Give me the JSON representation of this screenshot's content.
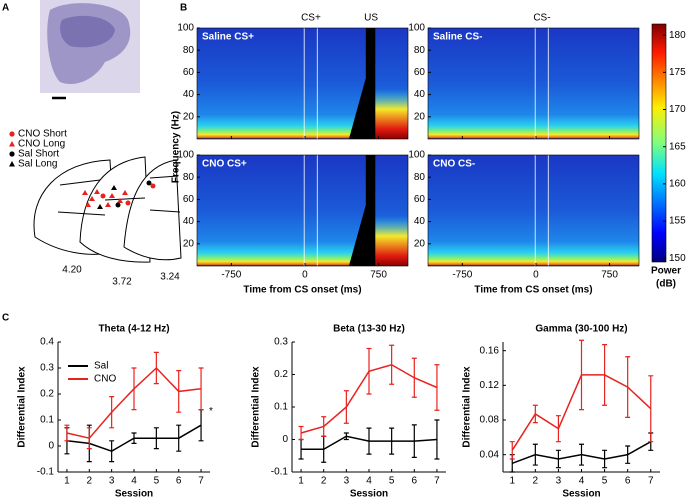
{
  "panel_labels": [
    "A",
    "B",
    "C"
  ],
  "histology": {
    "legend": [
      {
        "label": "CNO Short",
        "color": "#e8221e",
        "marker": "circle"
      },
      {
        "label": "CNO Long",
        "color": "#e8221e",
        "marker": "triangle"
      },
      {
        "label": "Sal Short",
        "color": "#000000",
        "marker": "circle"
      },
      {
        "label": "Sal Long",
        "color": "#000000",
        "marker": "triangle"
      }
    ],
    "section_labels": [
      "4.20",
      "3.72",
      "3.24"
    ]
  },
  "chart_data": [
    {
      "type": "spectrogram",
      "event_labels": {
        "cs_plus": "CS+",
        "us": "US",
        "cs_minus": "CS-"
      },
      "panels": [
        "Saline CS+",
        "Saline CS-",
        "CNO CS+",
        "CNO CS-"
      ],
      "ylabel": "Frequency (Hz)",
      "xlabel": "Time from CS onset (ms)",
      "ylim": [
        0,
        100
      ],
      "yticks": [
        20,
        40,
        60,
        80,
        100
      ],
      "xlim": [
        -1100,
        1050
      ],
      "xticks": [
        -750,
        0,
        750
      ],
      "colorbar": {
        "label_lines": [
          "Power",
          "(dB)"
        ],
        "lim": [
          149.5,
          181.5
        ],
        "ticks": [
          150,
          155,
          160,
          165,
          170,
          175,
          180
        ]
      }
    },
    {
      "type": "line",
      "title": "Theta (4-12 Hz)",
      "xlabel": "Session",
      "ylabel": "Differential Index",
      "x": [
        1,
        2,
        3,
        4,
        5,
        6,
        7
      ],
      "xlim": [
        0.6,
        7.4
      ],
      "xticks": [
        1,
        2,
        3,
        4,
        5,
        6,
        7
      ],
      "ylim": [
        -0.1,
        0.4
      ],
      "yticks": [
        -0.1,
        0,
        0.1,
        0.2,
        0.3,
        0.4
      ],
      "legend": true,
      "annotation": "*",
      "series": [
        {
          "name": "Sal",
          "color": "#000000",
          "values": [
            0.02,
            0.01,
            -0.02,
            0.03,
            0.03,
            0.03,
            0.08
          ],
          "errors": [
            0.05,
            0.07,
            0.04,
            0.02,
            0.04,
            0.05,
            0.06
          ]
        },
        {
          "name": "CNO",
          "color": "#e8221e",
          "values": [
            0.05,
            0.03,
            0.13,
            0.22,
            0.3,
            0.21,
            0.22
          ],
          "errors": [
            0.03,
            0.04,
            0.06,
            0.08,
            0.06,
            0.08,
            0.08
          ]
        }
      ]
    },
    {
      "type": "line",
      "title": "Beta (13-30 Hz)",
      "xlabel": "Session",
      "ylabel": "Differential Index",
      "x": [
        1,
        2,
        3,
        4,
        5,
        6,
        7
      ],
      "xlim": [
        0.6,
        7.4
      ],
      "xticks": [
        1,
        2,
        3,
        4,
        5,
        6,
        7
      ],
      "ylim": [
        -0.1,
        0.3
      ],
      "yticks": [
        -0.1,
        0,
        0.1,
        0.2,
        0.3
      ],
      "legend": false,
      "series": [
        {
          "color": "#000000",
          "values": [
            -0.03,
            -0.03,
            0.01,
            -0.005,
            -0.005,
            -0.005,
            0
          ],
          "errors": [
            0.03,
            0.04,
            0.01,
            0.04,
            0.04,
            0.05,
            0.06
          ]
        },
        {
          "color": "#e8221e",
          "values": [
            0.02,
            0.04,
            0.1,
            0.21,
            0.23,
            0.19,
            0.16
          ],
          "errors": [
            0.02,
            0.03,
            0.05,
            0.07,
            0.06,
            0.06,
            0.07
          ]
        }
      ]
    },
    {
      "type": "line",
      "title": "Gamma (30-100 Hz)",
      "xlabel": "Session",
      "ylabel": "Differential Index",
      "x": [
        1,
        2,
        3,
        4,
        5,
        6,
        7
      ],
      "xlim": [
        0.6,
        7.4
      ],
      "xticks": [
        1,
        2,
        3,
        4,
        5,
        6,
        7
      ],
      "ylim": [
        0.02,
        0.17
      ],
      "yticks": [
        0.04,
        0.08,
        0.12,
        0.16
      ],
      "legend": false,
      "series": [
        {
          "color": "#000000",
          "values": [
            0.03,
            0.04,
            0.035,
            0.04,
            0.035,
            0.04,
            0.055
          ],
          "errors": [
            0.01,
            0.012,
            0.01,
            0.012,
            0.01,
            0.01,
            0.01
          ]
        },
        {
          "color": "#e8221e",
          "values": [
            0.045,
            0.087,
            0.07,
            0.132,
            0.132,
            0.118,
            0.093
          ],
          "errors": [
            0.01,
            0.01,
            0.015,
            0.04,
            0.035,
            0.035,
            0.038
          ]
        }
      ]
    }
  ]
}
